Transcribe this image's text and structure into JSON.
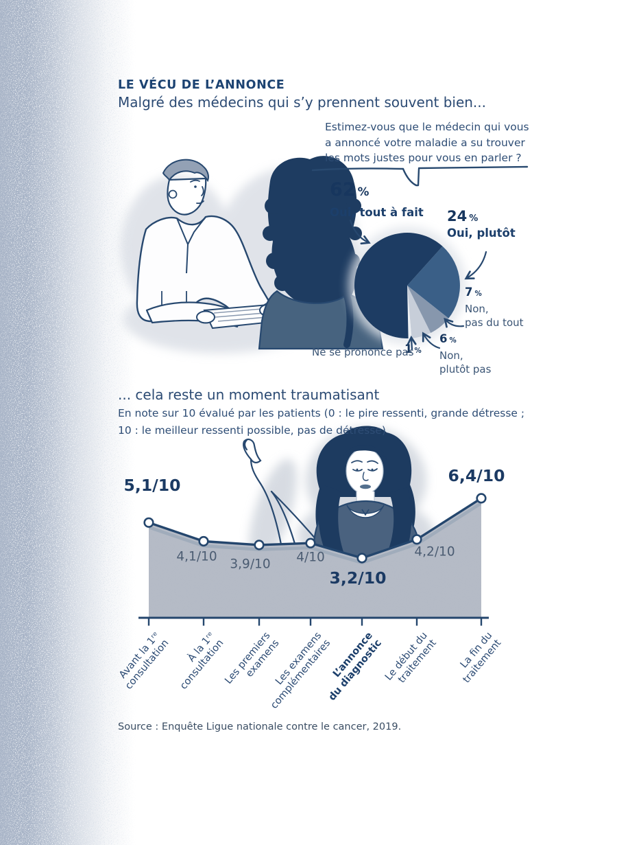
{
  "page": {
    "kicker": "LE VÉCU DE L’ANNONCE",
    "intro": "Malgré des médecins qui s’y prennent souvent bien...",
    "section2_title": "... cela reste un moment traumatisant",
    "section2_note_line1": "En note sur 10 évalué par les patients (0 : le pire ressenti, grande détresse ;",
    "section2_note_line2": "10 : le meilleur ressenti possible, pas de détresse)",
    "source": "Source : Enquête Ligue nationale contre le cancer, 2019."
  },
  "colors": {
    "navy_line": "#27486f",
    "heading": "#1c4372",
    "number": "#17365e",
    "area_fill": "#b5bbc6",
    "edge_tint": "#a8b4c7"
  },
  "chart_data": [
    {
      "type": "pie",
      "question_lines": [
        "Estimez-vous que le médecin qui vous",
        "a annoncé votre maladie a su trouver",
        "les mots justes pour vous en parler ?"
      ],
      "slices": [
        {
          "value": 62,
          "value_label": "62",
          "unit": "%",
          "label_lines": [
            "Oui, tout à fait"
          ],
          "color": "#1d3c63"
        },
        {
          "value": 24,
          "value_label": "24",
          "unit": "%",
          "label_lines": [
            "Oui, plutôt"
          ],
          "color": "#3a5f87"
        },
        {
          "value": 7,
          "value_label": "7",
          "unit": "%",
          "label_lines": [
            "Non,",
            "pas du tout"
          ],
          "color": "#8797ad"
        },
        {
          "value": 6,
          "value_label": "6",
          "unit": "%",
          "label_lines": [
            "Non,",
            "plutôt pas"
          ],
          "color": "#c7ced9"
        },
        {
          "value": 1,
          "value_label": "1",
          "unit": "%",
          "label_lines": [
            "Ne se prononce pas"
          ],
          "color": "#eef1f4"
        }
      ],
      "start_angle_deg": 42,
      "draw_order": [
        1,
        2,
        3,
        4,
        0
      ],
      "legend_position": "around"
    },
    {
      "type": "area",
      "categories": [
        [
          "Avant la 1ʳᵉ",
          "consultation"
        ],
        [
          "À la 1ʳᵉ",
          "consultation"
        ],
        [
          "Les premiers",
          "examens"
        ],
        [
          "Les examens",
          "complémentaires"
        ],
        [
          "L’annonce",
          "du diagnostic"
        ],
        [
          "Le début du",
          "traitement"
        ],
        [
          "La fin du",
          "traitement"
        ]
      ],
      "values": [
        5.1,
        4.1,
        3.9,
        4,
        3.2,
        4.2,
        6.4
      ],
      "value_labels": [
        "5,1/10",
        "4,1/10",
        "3,9/10",
        "4/10",
        "3,2/10",
        "4,2/10",
        "6,4/10"
      ],
      "emphasized_points": [
        0,
        4,
        6
      ],
      "highlight_category_index": 4,
      "ylim": [
        0,
        10
      ],
      "grid": false
    }
  ]
}
